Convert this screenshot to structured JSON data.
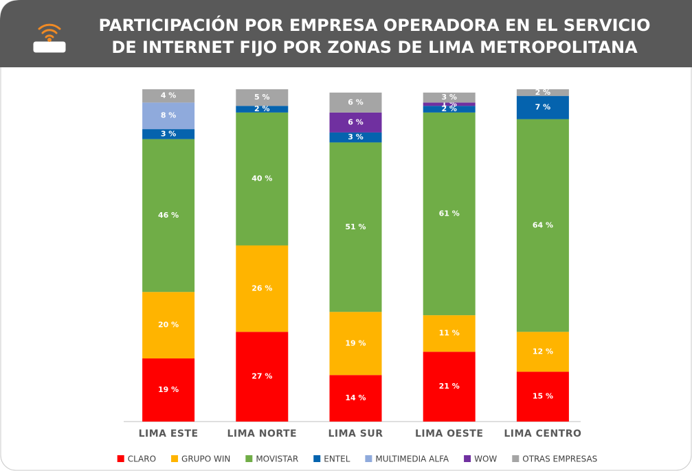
{
  "chart_data": {
    "type": "stacked_bar",
    "title": [
      "PARTICIPACIÓN POR EMPRESA OPERADORA EN EL SERVICIO",
      "DE INTERNET FIJO POR ZONAS DE LIMA METROPOLITANA"
    ],
    "categories": [
      "LIMA ESTE",
      "LIMA NORTE",
      "LIMA SUR",
      "LIMA OESTE",
      "LIMA CENTRO"
    ],
    "ylim": [
      0,
      100
    ],
    "series": [
      {
        "name": "CLARO",
        "color": "#ff0000",
        "values": [
          19,
          27,
          14,
          21,
          15
        ],
        "value_labels": [
          "19 %",
          "27 %",
          "14 %",
          "21 %",
          "15 %"
        ]
      },
      {
        "name": "GRUPO WIN",
        "color": "#ffb400",
        "values": [
          20,
          26,
          19,
          11,
          12
        ],
        "value_labels": [
          "20 %",
          "26 %",
          "19 %",
          "11 %",
          "12 %"
        ]
      },
      {
        "name": "MOVISTAR",
        "color": "#70ad47",
        "values": [
          46,
          40,
          51,
          61,
          64
        ],
        "value_labels": [
          "46 %",
          "40 %",
          "51 %",
          "61 %",
          "64 %"
        ]
      },
      {
        "name": "ENTEL",
        "color": "#0563ae",
        "values": [
          3,
          2,
          3,
          2,
          7
        ],
        "value_labels": [
          "3 %",
          "2 %",
          "3 %",
          "2 %",
          "7 %"
        ]
      },
      {
        "name": "MULTIMEDIA ALFA",
        "color": "#8faadc",
        "values": [
          8,
          null,
          null,
          null,
          null
        ],
        "value_labels": [
          "8 %",
          null,
          null,
          null,
          null
        ]
      },
      {
        "name": "WOW",
        "color": "#7030a0",
        "values": [
          null,
          null,
          6,
          1,
          null
        ],
        "value_labels": [
          null,
          null,
          "6 %",
          "1 %",
          null
        ]
      },
      {
        "name": "OTRAS EMPRESAS",
        "color": "#a5a5a5",
        "values": [
          4,
          5,
          6,
          3,
          2
        ],
        "value_labels": [
          "4 %",
          "5 %",
          "6 %",
          "3 %",
          "2 %"
        ]
      }
    ]
  }
}
